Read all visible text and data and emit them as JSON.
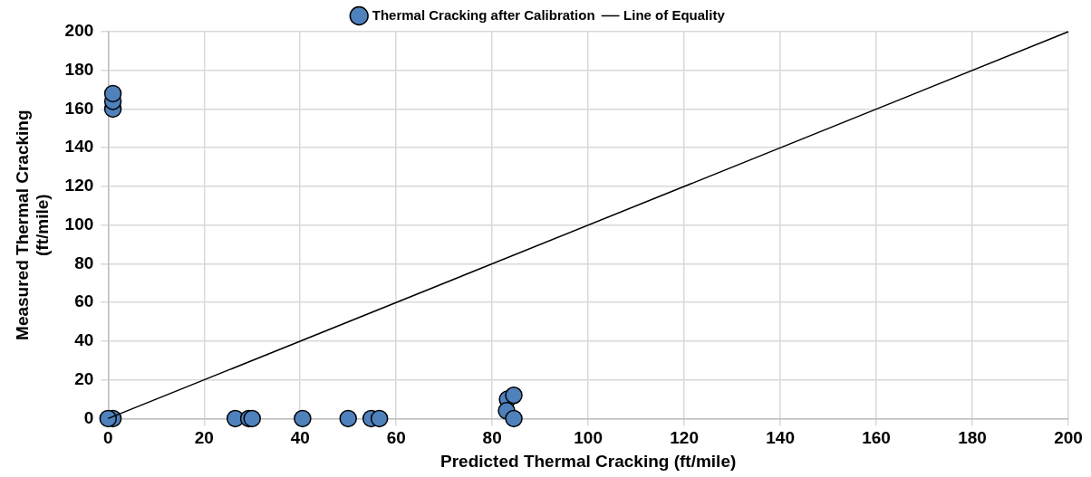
{
  "chart_data": {
    "type": "scatter",
    "xlabel": "Predicted Thermal Cracking (ft/mile)",
    "ylabel": "Measured Thermal Cracking (ft/mile)",
    "series": [
      {
        "name": "Thermal Cracking after Calibration",
        "color": "#4f81bd",
        "marker": "circle",
        "x": [
          1,
          0,
          26.5,
          29.3,
          30,
          40.5,
          50,
          54.8,
          56.5,
          83.2,
          83,
          84.5,
          84.5,
          1,
          1,
          1
        ],
        "values": [
          0,
          0,
          0,
          0,
          0,
          0,
          0,
          0,
          0,
          10,
          4,
          12,
          0,
          160,
          164,
          168
        ]
      },
      {
        "name": "Line of Equality",
        "type": "line",
        "color": "#000000",
        "marker": "none",
        "line_style": "solid",
        "x": [
          0,
          200
        ],
        "values": [
          0,
          200
        ]
      }
    ],
    "xlim": [
      0,
      200
    ],
    "xticks": [
      0,
      20,
      40,
      60,
      80,
      100,
      120,
      140,
      160,
      180,
      200
    ],
    "ylim": [
      0,
      200
    ],
    "yticks": [
      0,
      20,
      40,
      60,
      80,
      100,
      120,
      140,
      160,
      180,
      200
    ],
    "grid": true,
    "legend": "top"
  }
}
